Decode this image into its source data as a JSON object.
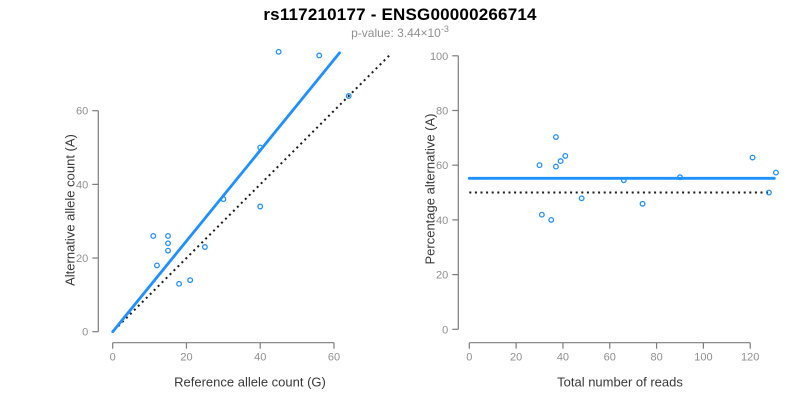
{
  "header": {
    "title": "rs117210177 - ENSG00000266714",
    "pvalue_prefix": "p-value: 3.44×10",
    "pvalue_exponent": "-3"
  },
  "colors": {
    "accent_blue": "#1e90ff",
    "identity_line_black": "#1a1a1a",
    "axis_gray": "#7d7d7d",
    "tick_label_gray": "#8f8f8f",
    "axis_title_gray": "#383838",
    "title_black": "#000000",
    "subtitle_gray": "#8f8f8f"
  },
  "chart_data": [
    {
      "type": "scatter",
      "name": "allele-counts-scatter",
      "xlabel": "Reference allele count (G)",
      "ylabel": "Alternative allele count (A)",
      "xticks": [
        0,
        20,
        40,
        60
      ],
      "yticks": [
        0,
        20,
        40,
        60
      ],
      "xlim": [
        0,
        75
      ],
      "ylim": [
        0,
        78
      ],
      "grid": false,
      "points": [
        [
          11,
          26
        ],
        [
          12,
          18
        ],
        [
          15,
          22
        ],
        [
          15,
          24
        ],
        [
          15,
          26
        ],
        [
          18,
          13
        ],
        [
          21,
          14
        ],
        [
          25,
          23
        ],
        [
          30,
          36
        ],
        [
          40,
          34
        ],
        [
          40,
          50
        ],
        [
          45,
          76
        ],
        [
          56,
          75
        ],
        [
          64,
          64
        ]
      ],
      "fit_line": {
        "slope": 1.23,
        "intercept": 0,
        "style": "solid",
        "color": "#1e90ff",
        "from": [
          0,
          0
        ],
        "to": [
          61.5,
          75.7
        ]
      },
      "identity_line": {
        "slope": 1,
        "intercept": 0,
        "style": "dotted",
        "color": "#1a1a1a",
        "from": [
          1.5,
          1.5
        ],
        "to": [
          75.3,
          75.3
        ]
      }
    },
    {
      "type": "scatter",
      "name": "percentage-vs-reads-scatter",
      "xlabel": "Total number of reads",
      "ylabel": "Percentage alternative (A)",
      "xticks": [
        0,
        20,
        40,
        60,
        80,
        100,
        120
      ],
      "yticks": [
        0,
        20,
        40,
        60,
        80,
        100
      ],
      "xlim": [
        0,
        131
      ],
      "ylim": [
        0,
        100
      ],
      "grid": false,
      "points": [
        [
          30,
          60
        ],
        [
          31,
          41.9
        ],
        [
          35,
          40
        ],
        [
          37,
          59.5
        ],
        [
          37,
          70.3
        ],
        [
          39,
          61.5
        ],
        [
          41,
          63.4
        ],
        [
          48,
          47.9
        ],
        [
          66,
          54.5
        ],
        [
          74,
          45.9
        ],
        [
          90,
          55.6
        ],
        [
          121,
          62.8
        ],
        [
          128,
          50
        ],
        [
          131,
          57.3
        ]
      ],
      "fit_line": {
        "y": 55.2,
        "style": "solid",
        "color": "#1e90ff",
        "from": [
          0,
          55.2
        ],
        "to": [
          130.3,
          55.2
        ]
      },
      "identity_line": {
        "y": 50,
        "style": "dotted",
        "color": "#1a1a1a",
        "from": [
          0,
          50
        ],
        "to": [
          128.5,
          50
        ]
      }
    }
  ]
}
